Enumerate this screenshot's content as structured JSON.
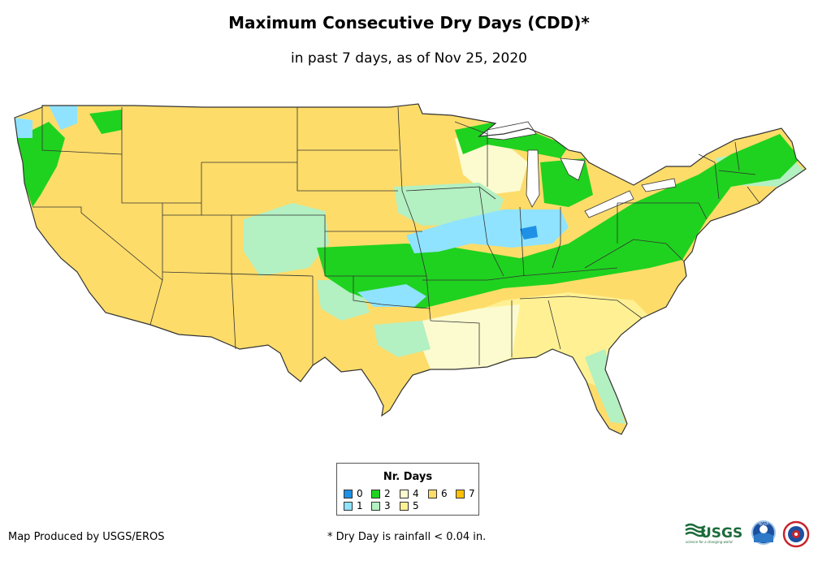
{
  "title": "Maximum Consecutive Dry Days (CDD)*",
  "subtitle": "in past 7 days, as of Nov 25, 2020",
  "legend": {
    "title": "Nr. Days",
    "items": [
      {
        "value": "0",
        "color": "#1e90e6"
      },
      {
        "value": "1",
        "color": "#8fe3ff"
      },
      {
        "value": "2",
        "color": "#1fd21f"
      },
      {
        "value": "3",
        "color": "#b3f0c2"
      },
      {
        "value": "4",
        "color": "#fbfbcf"
      },
      {
        "value": "5",
        "color": "#fff193"
      },
      {
        "value": "6",
        "color": "#fddc6a"
      },
      {
        "value": "7",
        "color": "#ffc107"
      }
    ]
  },
  "footer": {
    "credit": "Map Produced by USGS/EROS",
    "note": "* Dry Day is rainfall < 0.04 in."
  },
  "logos": {
    "usgs_text": "USGS",
    "usgs_tagline": "science for a changing world",
    "noaa_text": "NOAA"
  },
  "colors": {
    "dry6": "#fddc6a",
    "dry5": "#fff193",
    "dry4": "#fbfbcf",
    "dry3": "#b3f0c2",
    "wet2": "#1fd21f",
    "wet1": "#8fe3ff",
    "wet0": "#1e90e6",
    "border": "#333333"
  }
}
